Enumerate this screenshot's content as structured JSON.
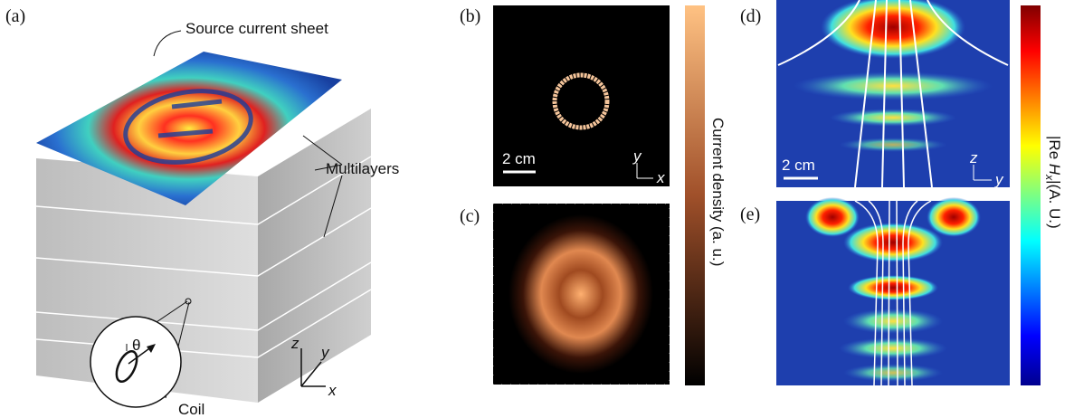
{
  "panel_a": {
    "label": "(a)",
    "sheet_label": "Source current sheet",
    "layers_label": "Multilayers",
    "angle": "θ",
    "coil_label": "Coil",
    "axes": {
      "z": "z",
      "y": "y",
      "x": "x"
    }
  },
  "panel_b": {
    "label": "(b)",
    "scale": "2 cm",
    "axes": {
      "y": "y",
      "x": "x"
    }
  },
  "panel_c": {
    "label": "(c)"
  },
  "colorbar_bc": {
    "label": "Current density (a. u.)"
  },
  "panel_d": {
    "label": "(d)",
    "scale": "2 cm",
    "axes": {
      "z": "z",
      "y": "y"
    }
  },
  "panel_e": {
    "label": "(e)"
  },
  "colorbar_de": {
    "prefix": "|Re ",
    "symbol": "H",
    "subscript": "x",
    "suffix": "|(A. U.)"
  }
}
